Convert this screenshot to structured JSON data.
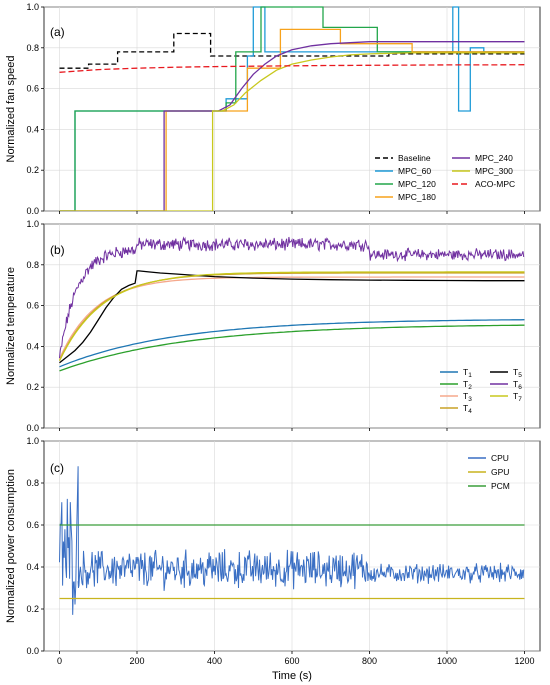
{
  "chart_data": [
    {
      "type": "line",
      "panel_label": "(a)",
      "ylabel": "Normalized fan speed",
      "xlim": [
        -40,
        1240
      ],
      "ylim": [
        0,
        1.0
      ],
      "yticks": [
        "0.0",
        "0.2",
        "0.4",
        "0.6",
        "0.8",
        "1.0"
      ],
      "grid": true,
      "legend_position": "bottom-right",
      "series": [
        {
          "name": "Baseline",
          "color": "#000000",
          "dash": "5,3",
          "step": true,
          "x": [
            0,
            75,
            75,
            150,
            150,
            225,
            225,
            295,
            295,
            390,
            390,
            850,
            850,
            1200
          ],
          "y": [
            0.7,
            0.7,
            0.72,
            0.72,
            0.78,
            0.78,
            0.78,
            0.78,
            0.87,
            0.87,
            0.76,
            0.76,
            0.77,
            0.77
          ]
        },
        {
          "name": "MPC_60",
          "color": "#1f9bd7",
          "step": true,
          "x": [
            0,
            40,
            40,
            215,
            215,
            430,
            430,
            455,
            455,
            485,
            485,
            500,
            500,
            530,
            530,
            1015,
            1015,
            1030,
            1030,
            1060,
            1060,
            1085,
            1085,
            1095,
            1095,
            1100,
            1100,
            1200
          ],
          "y": [
            0,
            0,
            0.49,
            0.49,
            0.49,
            0.49,
            0.55,
            0.55,
            0.55,
            0.55,
            0.76,
            0.76,
            1.0,
            1.0,
            0.78,
            0.78,
            1.0,
            1.0,
            0.49,
            0.49,
            0.8,
            0.8,
            0.8,
            0.8,
            0.78,
            0.78,
            0.78,
            0.78
          ]
        },
        {
          "name": "MPC_120",
          "color": "#22a64a",
          "step": true,
          "x": [
            0,
            40,
            40,
            430,
            430,
            455,
            455,
            520,
            520,
            680,
            680,
            820,
            820,
            1200
          ],
          "y": [
            0,
            0,
            0.49,
            0.49,
            0.53,
            0.53,
            0.78,
            0.78,
            1.0,
            1.0,
            0.9,
            0.9,
            0.78,
            0.78
          ]
        },
        {
          "name": "MPC_180",
          "color": "#f7a21b",
          "step": true,
          "x": [
            0,
            275,
            275,
            415,
            415,
            485,
            485,
            570,
            570,
            725,
            725,
            910,
            910,
            1200
          ],
          "y": [
            0,
            0,
            0.49,
            0.49,
            0.49,
            0.49,
            0.7,
            0.7,
            0.89,
            0.89,
            0.82,
            0.82,
            0.78,
            0.78
          ]
        },
        {
          "name": "MPC_240",
          "color": "#7030a0",
          "x": [
            0,
            270,
            270,
            400,
            400,
            410,
            440,
            470,
            500,
            530,
            560,
            600,
            650,
            700,
            750,
            800,
            900,
            1000,
            1100,
            1200
          ],
          "y": [
            0,
            0,
            0.49,
            0.49,
            0.49,
            0.49,
            0.52,
            0.6,
            0.67,
            0.72,
            0.76,
            0.79,
            0.81,
            0.82,
            0.825,
            0.83,
            0.83,
            0.83,
            0.83,
            0.83
          ]
        },
        {
          "name": "MPC_300",
          "color": "#c8c81e",
          "x": [
            0,
            395,
            395,
            420,
            450,
            480,
            520,
            560,
            600,
            650,
            700,
            750,
            800,
            900,
            1000,
            1100,
            1200
          ],
          "y": [
            0,
            0,
            0.49,
            0.49,
            0.52,
            0.58,
            0.64,
            0.69,
            0.72,
            0.74,
            0.755,
            0.765,
            0.77,
            0.775,
            0.775,
            0.775,
            0.775
          ]
        },
        {
          "name": "ACO-MPC",
          "color": "#e8191f",
          "dash": "6,3",
          "x": [
            0,
            100,
            200,
            300,
            400,
            500,
            600,
            700,
            800,
            900,
            1000,
            1100,
            1200
          ],
          "y": [
            0.68,
            0.693,
            0.7,
            0.705,
            0.708,
            0.71,
            0.712,
            0.713,
            0.714,
            0.715,
            0.716,
            0.716,
            0.717
          ]
        }
      ]
    },
    {
      "type": "line",
      "panel_label": "(b)",
      "ylabel": "Normalized temperature",
      "xlim": [
        -40,
        1240
      ],
      "ylim": [
        0,
        1.0
      ],
      "yticks": [
        "0.0",
        "0.2",
        "0.4",
        "0.6",
        "0.8",
        "1.0"
      ],
      "grid": true,
      "legend_position": "bottom-right",
      "series": [
        {
          "name": "T1",
          "color": "#1f77b4",
          "curve": {
            "y0": 0.3,
            "yinf": 0.535,
            "tau": 300
          }
        },
        {
          "name": "T2",
          "color": "#2ca02c",
          "curve": {
            "y0": 0.28,
            "yinf": 0.51,
            "tau": 330
          }
        },
        {
          "name": "T3",
          "color": "#f5a88c",
          "curve": {
            "y0": 0.34,
            "yinf": 0.74,
            "tau": 95
          }
        },
        {
          "name": "T4",
          "color": "#c9a227",
          "curve": {
            "y0": 0.33,
            "yinf": 0.76,
            "tau": 105
          }
        },
        {
          "name": "T5",
          "color": "#000000",
          "x": [
            0,
            20,
            40,
            60,
            80,
            100,
            120,
            140,
            160,
            180,
            195,
            200,
            205,
            230,
            260,
            300,
            350,
            400,
            500,
            600,
            700,
            800,
            900,
            1000,
            1100,
            1200
          ],
          "y": [
            0.32,
            0.35,
            0.38,
            0.42,
            0.47,
            0.53,
            0.59,
            0.64,
            0.68,
            0.7,
            0.71,
            0.77,
            0.77,
            0.765,
            0.76,
            0.755,
            0.748,
            0.742,
            0.735,
            0.73,
            0.727,
            0.725,
            0.724,
            0.723,
            0.722,
            0.722
          ]
        },
        {
          "name": "T6",
          "color": "#7030a0",
          "noisy": true,
          "segments": [
            {
              "x0": 0,
              "x1": 200,
              "y0": 0.34,
              "yinf": 0.88,
              "tau": 45,
              "amp": 0.025
            },
            {
              "x0": 200,
              "x1": 800,
              "level": 0.9,
              "amp": 0.025
            },
            {
              "x0": 800,
              "x1": 1200,
              "level": 0.85,
              "amp": 0.022
            }
          ]
        },
        {
          "name": "T7",
          "color": "#c8c81e",
          "curve": {
            "y0": 0.33,
            "yinf": 0.765,
            "tau": 110
          }
        }
      ]
    },
    {
      "type": "line",
      "panel_label": "(c)",
      "ylabel": "Normalized power consumption",
      "xlabel": "Time (s)",
      "xlim": [
        -40,
        1240
      ],
      "ylim": [
        0,
        1.0
      ],
      "yticks": [
        "0.0",
        "0.2",
        "0.4",
        "0.6",
        "0.8",
        "1.0"
      ],
      "xticks": [
        "0",
        "200",
        "400",
        "600",
        "800",
        "1000",
        "1200"
      ],
      "grid": true,
      "legend_position": "top-right",
      "series": [
        {
          "name": "CPU",
          "color": "#3a6fc4",
          "noisy": true,
          "segments": [
            {
              "x0": 0,
              "x1": 50,
              "level": 0.47,
              "amp": 0.22
            },
            {
              "x0": 50,
              "x1": 800,
              "level": 0.39,
              "amp": 0.07
            },
            {
              "x0": 800,
              "x1": 1200,
              "level": 0.37,
              "amp": 0.035
            }
          ],
          "peak": {
            "x": 48,
            "y": 0.88
          }
        },
        {
          "name": "GPU",
          "color": "#c8b41e",
          "x": [
            0,
            1200
          ],
          "y": [
            0.25,
            0.25
          ]
        },
        {
          "name": "PCM",
          "color": "#3a9d3a",
          "x": [
            0,
            1200
          ],
          "y": [
            0.6,
            0.6
          ]
        }
      ]
    }
  ],
  "legends": {
    "a": [
      "Baseline",
      "MPC_60",
      "MPC_120",
      "MPC_180",
      "MPC_240",
      "MPC_300",
      "ACO-MPC"
    ],
    "b_sub": [
      "1",
      "2",
      "3",
      "4",
      "5",
      "6",
      "7"
    ],
    "c": [
      "CPU",
      "GPU",
      "PCM"
    ]
  },
  "xlabel": "Time (s)"
}
